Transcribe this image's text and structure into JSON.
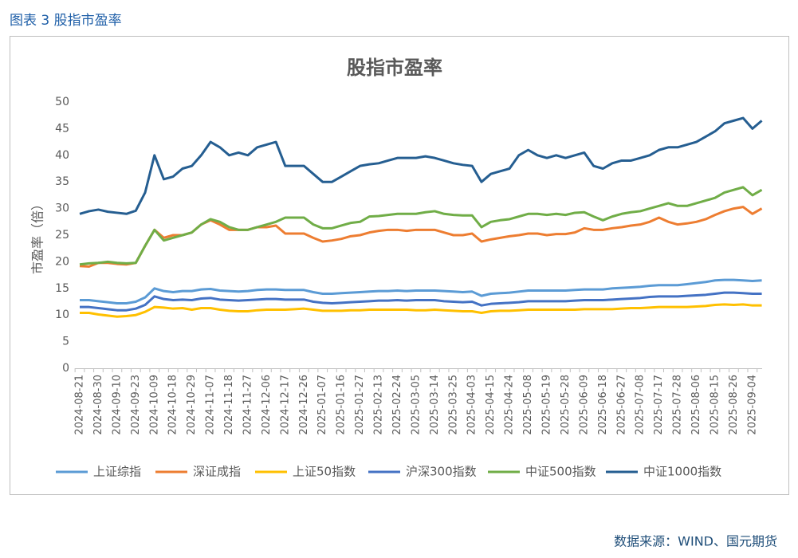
{
  "header": {
    "title": "图表 3 股指市盈率"
  },
  "source": "数据来源：WIND、国元期货",
  "chart_data": {
    "type": "line",
    "title": "股指市盈率",
    "y_label": "市盈率（倍）",
    "categories": [
      "2024-08-21",
      null,
      "2024-08-30",
      null,
      "2024-09-10",
      null,
      "2024-09-23",
      null,
      "2024-10-09",
      null,
      "2024-10-18",
      null,
      "2024-10-29",
      null,
      "2024-11-07",
      null,
      "2024-11-18",
      null,
      "2024-11-27",
      null,
      "2024-12-06",
      null,
      "2024-12-17",
      null,
      "2024-12-26",
      null,
      "2025-01-07",
      null,
      "2025-01-16",
      null,
      "2025-01-27",
      null,
      "2025-02-13",
      null,
      "2025-02-24",
      null,
      "2025-03-05",
      null,
      "2025-03-14",
      null,
      "2025-03-25",
      null,
      "2025-04-03",
      null,
      "2025-04-15",
      null,
      "2025-04-24",
      null,
      "2025-05-08",
      null,
      "2025-05-19",
      null,
      "2025-05-28",
      null,
      "2025-06-09",
      null,
      "2025-06-18",
      null,
      "2025-06-27",
      null,
      "2025-07-08",
      null,
      "2025-07-17",
      null,
      "2025-07-28",
      null,
      "2025-08-06",
      null,
      "2025-08-15",
      null,
      "2025-08-26",
      null,
      "2025-09-04",
      null
    ],
    "ylim": [
      0,
      50
    ],
    "yticks": [
      0,
      5,
      10,
      15,
      20,
      25,
      30,
      35,
      40,
      45,
      50
    ],
    "legend": "bottom",
    "series": [
      {
        "name": "上证综指",
        "color": "#5b9bd5",
        "values": [
          12.8,
          12.8,
          12.6,
          12.4,
          12.2,
          12.2,
          12.5,
          13.3,
          15,
          14.5,
          14.3,
          14.5,
          14.5,
          14.8,
          14.9,
          14.6,
          14.5,
          14.4,
          14.5,
          14.7,
          14.8,
          14.8,
          14.7,
          14.7,
          14.7,
          14.3,
          14.0,
          14.0,
          14.1,
          14.2,
          14.3,
          14.4,
          14.5,
          14.5,
          14.6,
          14.5,
          14.6,
          14.6,
          14.6,
          14.5,
          14.4,
          14.3,
          14.4,
          13.6,
          14.0,
          14.1,
          14.2,
          14.4,
          14.6,
          14.6,
          14.6,
          14.6,
          14.6,
          14.7,
          14.8,
          14.8,
          14.8,
          15.0,
          15.1,
          15.2,
          15.3,
          15.5,
          15.6,
          15.6,
          15.6,
          15.8,
          16.0,
          16.2,
          16.5,
          16.6,
          16.6,
          16.5,
          16.4,
          16.5
        ]
      },
      {
        "name": "深证成指",
        "color": "#ed7d31",
        "values": [
          19.2,
          19.1,
          19.8,
          19.8,
          19.6,
          19.5,
          19.8,
          23,
          26,
          24.5,
          25,
          25,
          25.5,
          27,
          27.8,
          27,
          26,
          26,
          26,
          26.5,
          26.5,
          26.8,
          25.3,
          25.3,
          25.3,
          24.5,
          23.8,
          24,
          24.3,
          24.8,
          25,
          25.5,
          25.8,
          26,
          26,
          25.8,
          26,
          26,
          26,
          25.5,
          25,
          25,
          25.3,
          23.8,
          24.2,
          24.5,
          24.8,
          25,
          25.3,
          25.3,
          25,
          25.2,
          25.2,
          25.5,
          26.3,
          26,
          26,
          26.3,
          26.5,
          26.8,
          27,
          27.5,
          28.3,
          27.5,
          27,
          27.2,
          27.5,
          28,
          28.8,
          29.5,
          30,
          30.3,
          29,
          30
        ]
      },
      {
        "name": "上证50指数",
        "color": "#ffc000",
        "values": [
          10.4,
          10.4,
          10.1,
          9.9,
          9.7,
          9.8,
          10.0,
          10.6,
          11.5,
          11.4,
          11.2,
          11.3,
          11.0,
          11.3,
          11.3,
          11.0,
          10.8,
          10.7,
          10.7,
          10.9,
          11.0,
          11.0,
          11.0,
          11.1,
          11.2,
          11.0,
          10.8,
          10.8,
          10.8,
          10.9,
          10.9,
          11.0,
          11.0,
          11.0,
          11.0,
          11.0,
          10.9,
          10.9,
          11.0,
          10.9,
          10.8,
          10.7,
          10.7,
          10.4,
          10.7,
          10.8,
          10.8,
          10.9,
          11.0,
          11.0,
          11.0,
          11.0,
          11.0,
          11.0,
          11.1,
          11.1,
          11.1,
          11.1,
          11.2,
          11.3,
          11.3,
          11.4,
          11.5,
          11.5,
          11.5,
          11.5,
          11.6,
          11.7,
          11.9,
          12.0,
          11.9,
          12.0,
          11.8,
          11.8
        ]
      },
      {
        "name": "沪深300指数",
        "color": "#4472c4",
        "values": [
          11.5,
          11.5,
          11.3,
          11.1,
          10.9,
          10.9,
          11.2,
          11.9,
          13.5,
          13.0,
          12.8,
          12.9,
          12.8,
          13.1,
          13.2,
          12.9,
          12.8,
          12.7,
          12.8,
          12.9,
          13.0,
          13.0,
          12.9,
          12.9,
          12.9,
          12.5,
          12.3,
          12.2,
          12.3,
          12.4,
          12.5,
          12.6,
          12.7,
          12.7,
          12.8,
          12.7,
          12.8,
          12.8,
          12.8,
          12.6,
          12.5,
          12.4,
          12.5,
          11.8,
          12.1,
          12.2,
          12.3,
          12.4,
          12.6,
          12.6,
          12.6,
          12.6,
          12.6,
          12.7,
          12.8,
          12.8,
          12.8,
          12.9,
          13.0,
          13.1,
          13.2,
          13.4,
          13.5,
          13.5,
          13.5,
          13.6,
          13.7,
          13.8,
          14.0,
          14.2,
          14.2,
          14.1,
          14.0,
          14.0
        ]
      },
      {
        "name": "中证500指数",
        "color": "#70ad47",
        "values": [
          19.5,
          19.7,
          19.8,
          20,
          19.8,
          19.7,
          19.8,
          23,
          26,
          24,
          24.5,
          25,
          25.5,
          27,
          28,
          27.5,
          26.5,
          26,
          26,
          26.5,
          27,
          27.5,
          28.3,
          28.3,
          28.3,
          27,
          26.3,
          26.3,
          26.8,
          27.3,
          27.5,
          28.5,
          28.6,
          28.8,
          29,
          29,
          29,
          29.3,
          29.5,
          29,
          28.8,
          28.7,
          28.7,
          26.5,
          27.5,
          27.8,
          28,
          28.5,
          29,
          29,
          28.8,
          29,
          28.8,
          29.2,
          29.3,
          28.5,
          27.8,
          28.5,
          29,
          29.3,
          29.5,
          30,
          30.5,
          31,
          30.5,
          30.5,
          31,
          31.5,
          32,
          33,
          33.5,
          34,
          32.5,
          33.5
        ]
      },
      {
        "name": "中证1000指数",
        "color": "#255e91",
        "values": [
          29,
          29.5,
          29.8,
          29.4,
          29.2,
          29.0,
          29.6,
          33,
          40,
          35.5,
          36,
          37.5,
          38,
          40,
          42.5,
          41.5,
          40,
          40.5,
          40,
          41.5,
          42,
          42.5,
          38,
          38,
          38,
          36.5,
          35,
          35,
          36,
          37,
          38,
          38.3,
          38.5,
          39,
          39.5,
          39.5,
          39.5,
          39.8,
          39.5,
          39,
          38.5,
          38.2,
          38,
          35,
          36.5,
          37,
          37.5,
          40,
          41,
          40,
          39.5,
          40,
          39.5,
          40,
          40.5,
          38,
          37.5,
          38.5,
          39,
          39,
          39.5,
          40,
          41,
          41.5,
          41.5,
          42,
          42.5,
          43.5,
          44.5,
          46,
          46.5,
          47,
          45,
          46.5
        ]
      }
    ]
  }
}
